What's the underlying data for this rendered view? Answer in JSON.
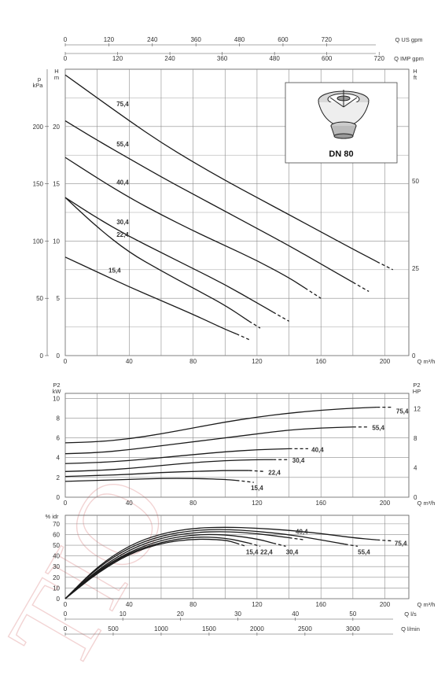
{
  "product": {
    "flange_label": "DN 80"
  },
  "colors": {
    "curve": "#1a1a1a",
    "grid": "#8c8c8c",
    "text": "#333333",
    "watermark": "#f2d3d3"
  },
  "chart_data": [
    {
      "type": "line",
      "xlabel": "Q m³/h",
      "xlim": [
        0,
        215
      ],
      "x_ticks": [
        "0",
        "40",
        "80",
        "120",
        "160",
        "200"
      ],
      "top_axes": [
        {
          "label": "Q US gpm",
          "ticks": [
            "0",
            "120",
            "240",
            "360",
            "480",
            "600",
            "720"
          ]
        },
        {
          "label": "Q IMP gpm",
          "ticks": [
            "0",
            "120",
            "240",
            "360",
            "480",
            "600",
            "720"
          ]
        }
      ],
      "left_axes": [
        {
          "label": "p",
          "unit": "kPa",
          "ticks": [
            "0",
            "50",
            "100",
            "150",
            "200"
          ]
        },
        {
          "label": "H",
          "unit": "m",
          "ticks": [
            "0",
            "5",
            "10",
            "15",
            "20"
          ]
        }
      ],
      "right_axis": {
        "label": "H",
        "unit": "ft",
        "ticks": [
          "0",
          "25",
          "50"
        ]
      },
      "ylim": [
        0,
        25
      ],
      "grid": true,
      "series": [
        {
          "name": "75,4",
          "x": [
            0,
            20,
            40,
            60,
            80,
            100,
            120,
            140,
            160,
            180,
            195
          ],
          "y": [
            24.5,
            22.5,
            20.5,
            18.6,
            16.9,
            15.3,
            13.8,
            12.3,
            10.8,
            9.3,
            8.2
          ],
          "dashed_x": [
            195,
            205
          ],
          "dashed_y": [
            8.2,
            7.5
          ]
        },
        {
          "name": "55,4",
          "x": [
            0,
            20,
            40,
            60,
            80,
            100,
            120,
            140,
            160,
            180
          ],
          "y": [
            20.5,
            18.8,
            17.2,
            15.6,
            14.1,
            12.6,
            11.1,
            9.6,
            8.0,
            6.4
          ],
          "dashed_x": [
            180,
            190
          ],
          "dashed_y": [
            6.4,
            5.6
          ]
        },
        {
          "name": "40,4",
          "x": [
            0,
            20,
            40,
            60,
            80,
            100,
            120,
            140,
            150
          ],
          "y": [
            17.3,
            15.5,
            13.8,
            12.3,
            10.9,
            9.6,
            8.3,
            6.8,
            5.9
          ],
          "dashed_x": [
            150,
            160
          ],
          "dashed_y": [
            5.9,
            5.0
          ]
        },
        {
          "name": "30,4",
          "x": [
            0,
            20,
            40,
            60,
            80,
            100,
            120,
            130
          ],
          "y": [
            13.8,
            12.0,
            10.4,
            9.0,
            7.6,
            6.2,
            4.6,
            3.8
          ],
          "dashed_x": [
            130,
            140
          ],
          "dashed_y": [
            3.8,
            3.0
          ]
        },
        {
          "name": "22,4",
          "x": [
            0,
            20,
            40,
            60,
            80,
            100,
            115
          ],
          "y": [
            13.8,
            11.2,
            9.0,
            7.4,
            5.9,
            4.4,
            3.0
          ],
          "dashed_x": [
            115,
            122
          ],
          "dashed_y": [
            3.0,
            2.4
          ]
        },
        {
          "name": "15,4",
          "x": [
            0,
            20,
            40,
            60,
            80,
            100,
            107
          ],
          "y": [
            8.6,
            7.3,
            6.0,
            4.8,
            3.6,
            2.3,
            1.9
          ],
          "dashed_x": [
            107,
            115
          ],
          "dashed_y": [
            1.9,
            1.4
          ]
        }
      ]
    },
    {
      "type": "line",
      "xlabel": "Q m³/h",
      "xlim": [
        0,
        215
      ],
      "x_ticks": [
        "0",
        "40",
        "80",
        "120",
        "160",
        "200"
      ],
      "left_axes": [
        {
          "label": "P2",
          "unit": "kW",
          "ticks": [
            "0",
            "2",
            "4",
            "6",
            "8",
            "10"
          ]
        }
      ],
      "right_axis": {
        "label": "P2",
        "unit": "HP",
        "ticks": [
          "0",
          "4",
          "8",
          "12"
        ]
      },
      "ylim": [
        0,
        10.5
      ],
      "grid": true,
      "series": [
        {
          "name": "75,4",
          "x": [
            0,
            20,
            40,
            60,
            80,
            100,
            120,
            140,
            160,
            180,
            195
          ],
          "y": [
            5.5,
            5.6,
            5.9,
            6.4,
            7.0,
            7.6,
            8.1,
            8.5,
            8.8,
            9.0,
            9.1
          ],
          "dashed_x": [
            195,
            205
          ],
          "dashed_y": [
            9.1,
            9.1
          ]
        },
        {
          "name": "55,4",
          "x": [
            0,
            20,
            40,
            60,
            80,
            100,
            120,
            140,
            160,
            180
          ],
          "y": [
            4.4,
            4.5,
            4.8,
            5.2,
            5.6,
            6.0,
            6.4,
            6.8,
            7.0,
            7.1
          ],
          "dashed_x": [
            180,
            190
          ],
          "dashed_y": [
            7.1,
            7.1
          ]
        },
        {
          "name": "40,4",
          "x": [
            0,
            20,
            40,
            60,
            80,
            100,
            120,
            140
          ],
          "y": [
            3.4,
            3.5,
            3.7,
            4.0,
            4.3,
            4.6,
            4.8,
            4.9
          ],
          "dashed_x": [
            140,
            152
          ],
          "dashed_y": [
            4.9,
            4.9
          ]
        },
        {
          "name": "30,4",
          "x": [
            0,
            20,
            40,
            60,
            80,
            100,
            120,
            130
          ],
          "y": [
            2.6,
            2.7,
            2.9,
            3.2,
            3.5,
            3.7,
            3.8,
            3.8
          ],
          "dashed_x": [
            130,
            140
          ],
          "dashed_y": [
            3.8,
            3.8
          ]
        },
        {
          "name": "22,4",
          "x": [
            0,
            20,
            40,
            60,
            80,
            100,
            115
          ],
          "y": [
            2.1,
            2.2,
            2.3,
            2.5,
            2.6,
            2.7,
            2.7
          ],
          "dashed_x": [
            115,
            125
          ],
          "dashed_y": [
            2.7,
            2.6
          ]
        },
        {
          "name": "15,4",
          "x": [
            0,
            20,
            40,
            60,
            80,
            100,
            107
          ],
          "y": [
            1.6,
            1.7,
            1.8,
            1.9,
            1.9,
            1.8,
            1.7
          ],
          "dashed_x": [
            107,
            118
          ],
          "dashed_y": [
            1.7,
            1.5
          ]
        }
      ]
    },
    {
      "type": "line",
      "xlabel": "Q m³/h",
      "xlim": [
        0,
        215
      ],
      "x_ticks": [
        "0",
        "40",
        "80",
        "120",
        "160",
        "200"
      ],
      "left_axes": [
        {
          "label": "% idr",
          "ticks": [
            "0",
            "10",
            "20",
            "30",
            "40",
            "50",
            "60",
            "70"
          ]
        }
      ],
      "bottom_axes": [
        {
          "label": "Q l/s",
          "ticks": [
            "0",
            "10",
            "20",
            "30",
            "40",
            "50"
          ]
        },
        {
          "label": "Q l/min",
          "ticks": [
            "0",
            "500",
            "1000",
            "1500",
            "2000",
            "2500",
            "3000"
          ]
        }
      ],
      "ylim": [
        0,
        78
      ],
      "grid": true,
      "series": [
        {
          "name": "75,4",
          "x": [
            0,
            20,
            40,
            60,
            80,
            100,
            120,
            140,
            160,
            180,
            195
          ],
          "y": [
            0,
            30,
            50,
            61,
            66,
            67,
            66,
            64,
            61,
            57,
            55
          ],
          "dashed_x": [
            195,
            205
          ],
          "dashed_y": [
            55,
            54
          ]
        },
        {
          "name": "55,4",
          "x": [
            0,
            20,
            40,
            60,
            80,
            100,
            120,
            140,
            160,
            175
          ],
          "y": [
            0,
            29,
            48,
            59,
            64,
            65,
            63,
            60,
            55,
            51
          ],
          "dashed_x": [
            175,
            183
          ],
          "dashed_y": [
            51,
            49
          ]
        },
        {
          "name": "40,4",
          "x": [
            0,
            20,
            40,
            60,
            80,
            100,
            120,
            140
          ],
          "y": [
            0,
            27,
            46,
            57,
            62,
            63,
            61,
            57
          ],
          "dashed_x": [
            140,
            150
          ],
          "dashed_y": [
            57,
            55
          ]
        },
        {
          "name": "30,4",
          "x": [
            0,
            20,
            40,
            60,
            80,
            100,
            120,
            130
          ],
          "y": [
            0,
            26,
            44,
            55,
            60,
            60,
            56,
            52
          ],
          "dashed_x": [
            130,
            138
          ],
          "dashed_y": [
            52,
            49
          ]
        },
        {
          "name": "22,4",
          "x": [
            0,
            20,
            40,
            60,
            80,
            100,
            115
          ],
          "y": [
            0,
            25,
            43,
            53,
            58,
            57,
            52
          ],
          "dashed_x": [
            115,
            122
          ],
          "dashed_y": [
            52,
            49
          ]
        },
        {
          "name": "15,4",
          "x": [
            0,
            20,
            40,
            60,
            80,
            100,
            107
          ],
          "y": [
            0,
            24,
            42,
            52,
            56,
            55,
            52
          ],
          "dashed_x": [
            107,
            113
          ],
          "dashed_y": [
            52,
            49
          ]
        }
      ]
    }
  ],
  "watermark": {
    "text": "TIO"
  }
}
